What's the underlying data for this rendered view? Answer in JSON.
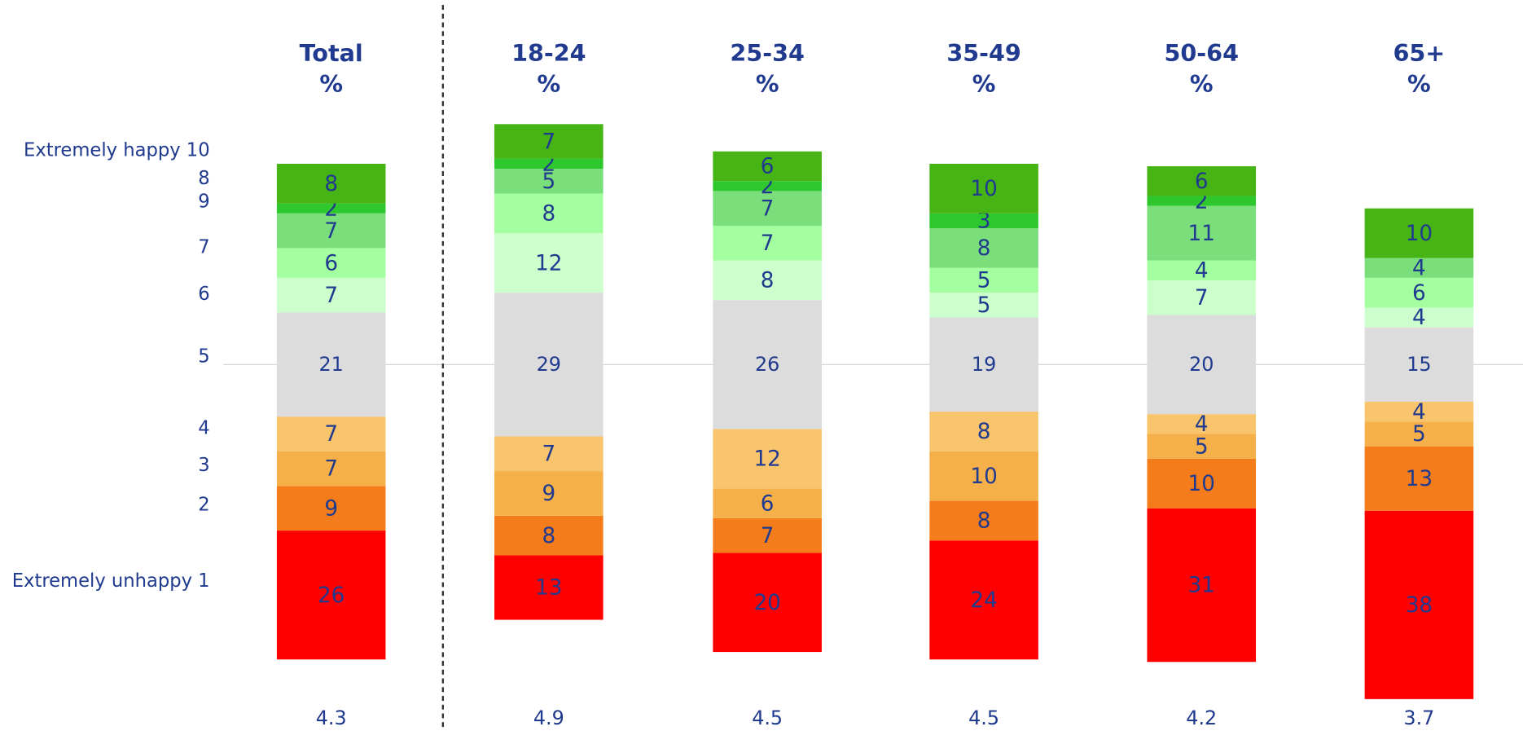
{
  "chart_data": {
    "type": "bar",
    "stacked": true,
    "categories": [
      "Total",
      "18-24",
      "25-34",
      "35-49",
      "50-64",
      "65+"
    ],
    "unit": "%",
    "row_labels": [
      "Extremely happy 10",
      "8",
      "9",
      "7",
      "6",
      "5",
      "4",
      "3",
      "2",
      "Extremely unhappy 1"
    ],
    "series": [
      {
        "color": "#ff0000",
        "values": [
          26,
          13,
          20,
          24,
          31,
          38
        ]
      },
      {
        "color": "#f47c1a",
        "values": [
          9,
          8,
          7,
          8,
          10,
          13
        ]
      },
      {
        "color": "#f5b04a",
        "values": [
          7,
          9,
          6,
          10,
          5,
          5
        ]
      },
      {
        "color": "#f8c46c",
        "values": [
          7,
          7,
          12,
          8,
          4,
          4
        ]
      },
      {
        "color": "#dcdcdc",
        "values": [
          21,
          29,
          26,
          19,
          20,
          15
        ]
      },
      {
        "color": "#ccffcc",
        "values": [
          7,
          12,
          8,
          5,
          7,
          4
        ]
      },
      {
        "color": "#a3ff9f",
        "values": [
          6,
          8,
          7,
          5,
          4,
          6
        ]
      },
      {
        "color": "#7ade7a",
        "values": [
          7,
          5,
          7,
          8,
          11,
          4
        ]
      },
      {
        "color": "#2ec82e",
        "values": [
          2,
          2,
          2,
          3,
          2,
          0
        ]
      },
      {
        "color": "#46b414",
        "values": [
          8,
          7,
          6,
          10,
          6,
          10
        ]
      }
    ],
    "means": [
      4.3,
      4.9,
      4.5,
      4.5,
      4.2,
      3.7
    ]
  }
}
